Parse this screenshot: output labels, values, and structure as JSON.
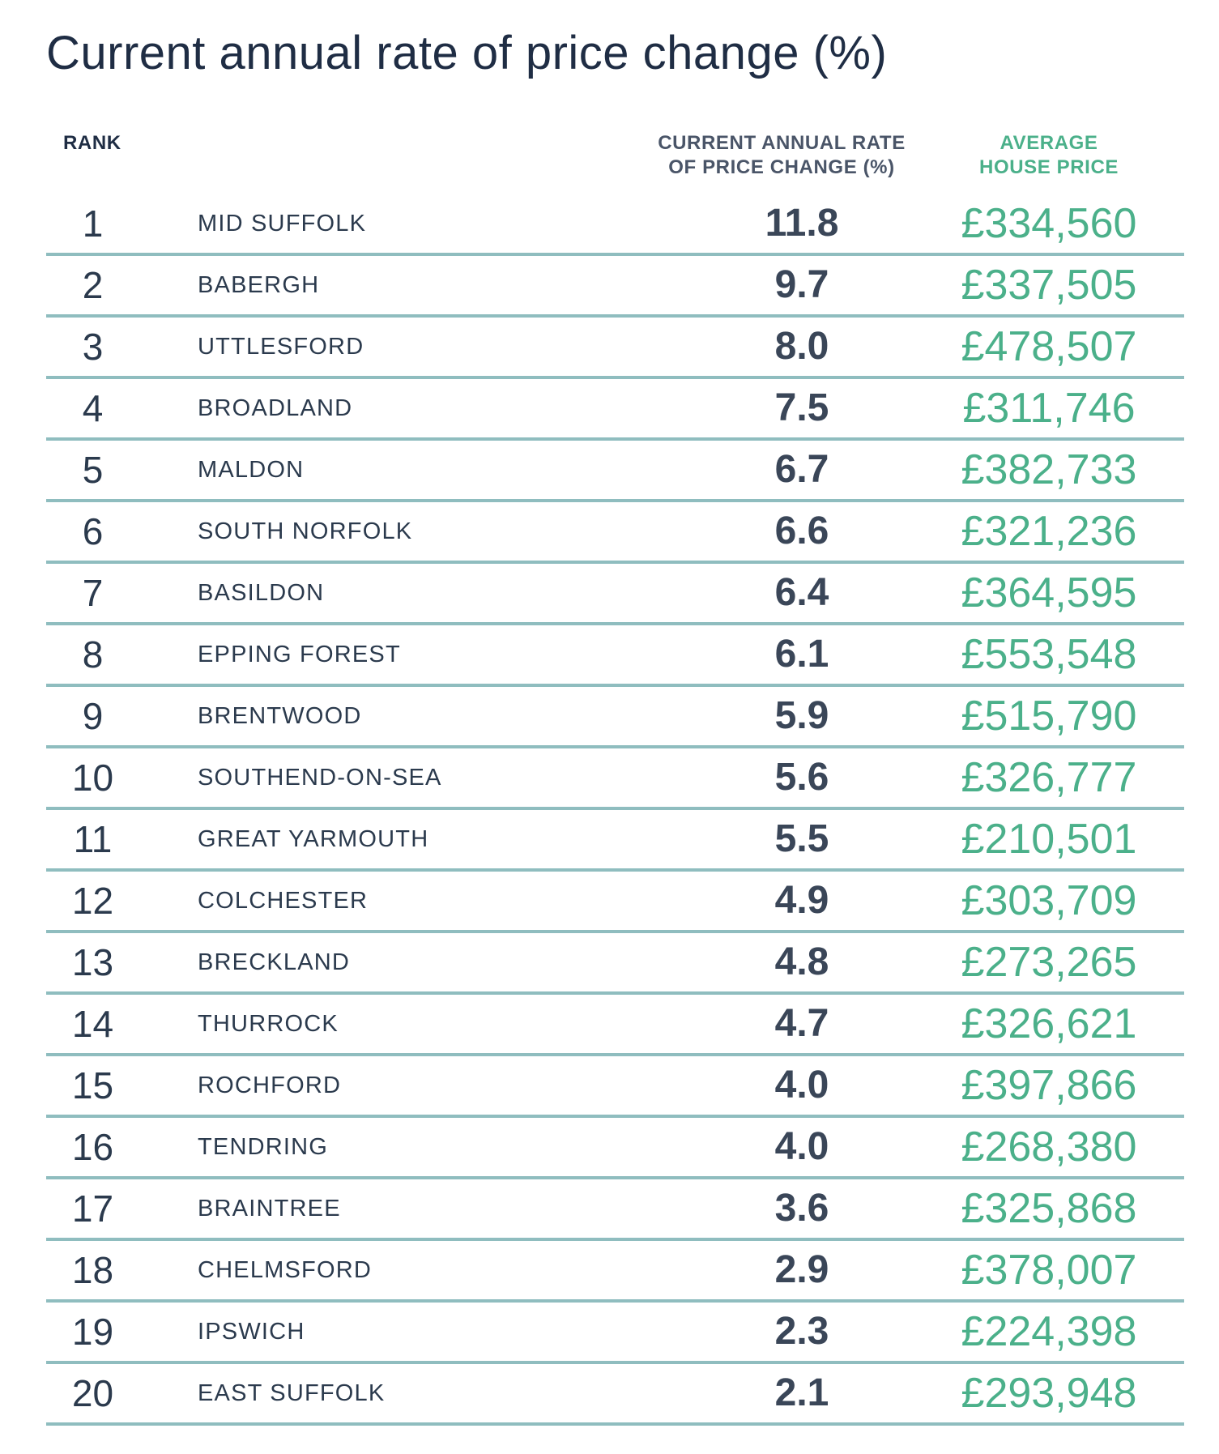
{
  "title": "Current annual rate of price change (%)",
  "headers": {
    "rank": "RANK",
    "rate_line1": "CURRENT ANNUAL RATE",
    "rate_line2": "OF PRICE CHANGE (%)",
    "price_line1": "AVERAGE",
    "price_line2": "HOUSE PRICE"
  },
  "rows": [
    {
      "rank": "1",
      "name": "MID SUFFOLK",
      "rate": "11.8",
      "price": "£334,560"
    },
    {
      "rank": "2",
      "name": "BABERGH",
      "rate": "9.7",
      "price": "£337,505"
    },
    {
      "rank": "3",
      "name": "UTTLESFORD",
      "rate": "8.0",
      "price": "£478,507"
    },
    {
      "rank": "4",
      "name": "BROADLAND",
      "rate": "7.5",
      "price": "£311,746"
    },
    {
      "rank": "5",
      "name": "MALDON",
      "rate": "6.7",
      "price": "£382,733"
    },
    {
      "rank": "6",
      "name": "SOUTH NORFOLK",
      "rate": "6.6",
      "price": "£321,236"
    },
    {
      "rank": "7",
      "name": "BASILDON",
      "rate": "6.4",
      "price": "£364,595"
    },
    {
      "rank": "8",
      "name": "EPPING FOREST",
      "rate": "6.1",
      "price": "£553,548"
    },
    {
      "rank": "9",
      "name": "BRENTWOOD",
      "rate": "5.9",
      "price": "£515,790"
    },
    {
      "rank": "10",
      "name": "SOUTHEND-ON-SEA",
      "rate": "5.6",
      "price": "£326,777"
    },
    {
      "rank": "11",
      "name": "GREAT YARMOUTH",
      "rate": "5.5",
      "price": "£210,501"
    },
    {
      "rank": "12",
      "name": "COLCHESTER",
      "rate": "4.9",
      "price": "£303,709"
    },
    {
      "rank": "13",
      "name": "BRECKLAND",
      "rate": "4.8",
      "price": "£273,265"
    },
    {
      "rank": "14",
      "name": "THURROCK",
      "rate": "4.7",
      "price": "£326,621"
    },
    {
      "rank": "15",
      "name": "ROCHFORD",
      "rate": "4.0",
      "price": "£397,866"
    },
    {
      "rank": "16",
      "name": "TENDRING",
      "rate": "4.0",
      "price": "£268,380"
    },
    {
      "rank": "17",
      "name": "BRAINTREE",
      "rate": "3.6",
      "price": "£325,868"
    },
    {
      "rank": "18",
      "name": "CHELMSFORD",
      "rate": "2.9",
      "price": "£378,007"
    },
    {
      "rank": "19",
      "name": "IPSWICH",
      "rate": "2.3",
      "price": "£224,398"
    },
    {
      "rank": "20",
      "name": "EAST SUFFOLK",
      "rate": "2.1",
      "price": "£293,948"
    }
  ]
}
